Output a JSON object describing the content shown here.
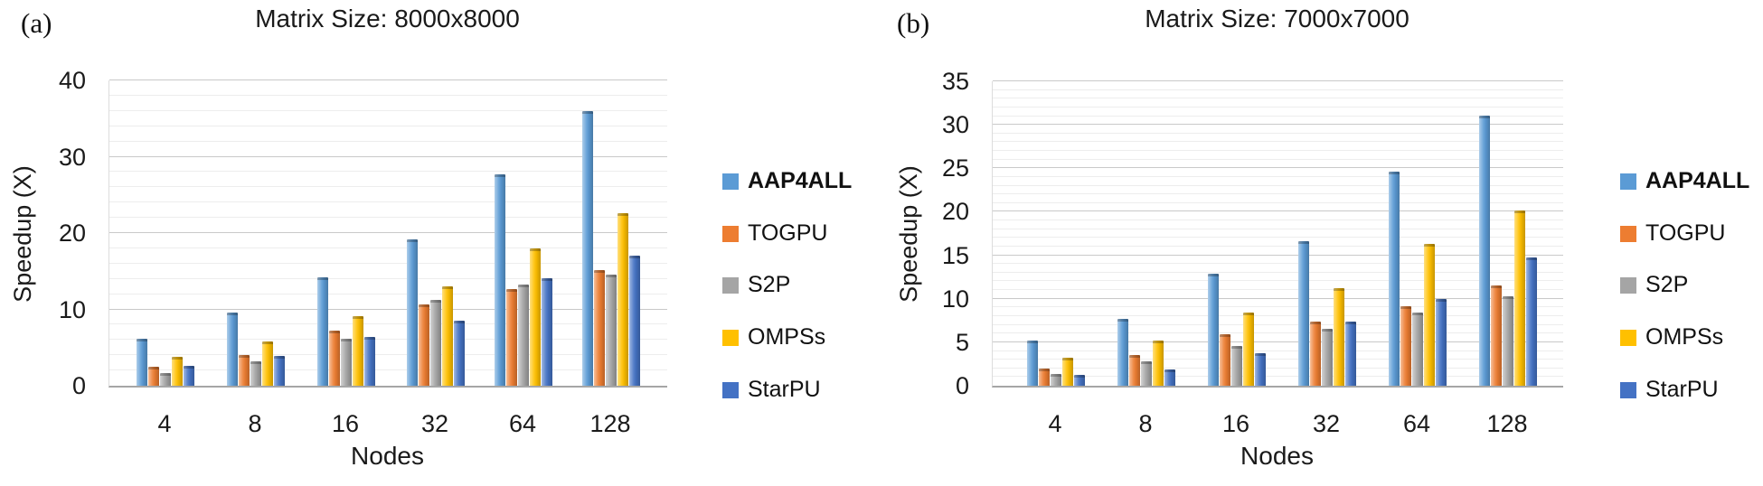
{
  "figure": {
    "panels": [
      {
        "panel_label": "(a)",
        "title": "Matrix Size: 8000x8000",
        "y_axis_title": "Speedup (X)",
        "x_axis_title": "Nodes",
        "y_ticks": [
          "0",
          "10",
          "20",
          "30",
          "40"
        ],
        "x_ticks": [
          "4",
          "8",
          "16",
          "32",
          "64",
          "128"
        ]
      },
      {
        "panel_label": "(b)",
        "title": "Matrix Size: 7000x7000",
        "y_axis_title": "Speedup (X)",
        "x_axis_title": "Nodes",
        "y_ticks": [
          "0",
          "5",
          "10",
          "15",
          "20",
          "25",
          "30",
          "35"
        ],
        "x_ticks": [
          "4",
          "8",
          "16",
          "32",
          "64",
          "128"
        ]
      }
    ],
    "legend": {
      "items": [
        {
          "label": "AAP4ALL",
          "color": "#5B9BD5",
          "bold": true
        },
        {
          "label": "TOGPU",
          "color": "#ED7D31",
          "bold": false
        },
        {
          "label": "S2P",
          "color": "#A5A5A5",
          "bold": false
        },
        {
          "label": "OMPSs",
          "color": "#FFC000",
          "bold": false
        },
        {
          "label": "StarPU",
          "color": "#4472C4",
          "bold": false
        }
      ]
    }
  },
  "chart_data": [
    {
      "type": "bar",
      "title": "Matrix Size: 8000x8000",
      "xlabel": "Nodes",
      "ylabel": "Speedup (X)",
      "categories": [
        "4",
        "8",
        "16",
        "32",
        "64",
        "128"
      ],
      "series": [
        {
          "name": "AAP4ALL",
          "color": "#5B9BD5",
          "values": [
            6.1,
            9.6,
            14.2,
            19.2,
            27.7,
            36.0
          ]
        },
        {
          "name": "TOGPU",
          "color": "#ED7D31",
          "values": [
            2.5,
            4.0,
            7.2,
            10.7,
            12.7,
            15.2
          ]
        },
        {
          "name": "S2P",
          "color": "#A5A5A5",
          "values": [
            1.7,
            3.2,
            6.2,
            11.2,
            13.2,
            14.5
          ]
        },
        {
          "name": "OMPSs",
          "color": "#FFC000",
          "values": [
            3.8,
            5.8,
            9.1,
            13.0,
            18.0,
            22.6
          ]
        },
        {
          "name": "StarPU",
          "color": "#4472C4",
          "values": [
            2.6,
            3.9,
            6.4,
            8.5,
            14.1,
            17.0
          ]
        }
      ],
      "ylim": [
        0,
        40
      ],
      "y_major_step": 10,
      "y_minor_step": 2,
      "grid": true,
      "legend_position": "right"
    },
    {
      "type": "bar",
      "title": "Matrix Size: 7000x7000",
      "xlabel": "Nodes",
      "ylabel": "Speedup (X)",
      "categories": [
        "4",
        "8",
        "16",
        "32",
        "64",
        "128"
      ],
      "series": [
        {
          "name": "AAP4ALL",
          "color": "#5B9BD5",
          "values": [
            5.2,
            7.7,
            12.9,
            16.6,
            24.6,
            31.1
          ]
        },
        {
          "name": "TOGPU",
          "color": "#ED7D31",
          "values": [
            2.0,
            3.5,
            5.9,
            7.4,
            9.1,
            11.5
          ]
        },
        {
          "name": "S2P",
          "color": "#A5A5A5",
          "values": [
            1.4,
            2.8,
            4.6,
            6.5,
            8.4,
            10.3
          ]
        },
        {
          "name": "OMPSs",
          "color": "#FFC000",
          "values": [
            3.2,
            5.2,
            8.4,
            11.2,
            16.3,
            20.2
          ]
        },
        {
          "name": "StarPU",
          "color": "#4472C4",
          "values": [
            1.2,
            1.9,
            3.7,
            7.4,
            10.0,
            14.7
          ]
        }
      ],
      "ylim": [
        0,
        35
      ],
      "y_major_step": 5,
      "y_minor_step": 1,
      "grid": true,
      "legend_position": "right"
    }
  ]
}
